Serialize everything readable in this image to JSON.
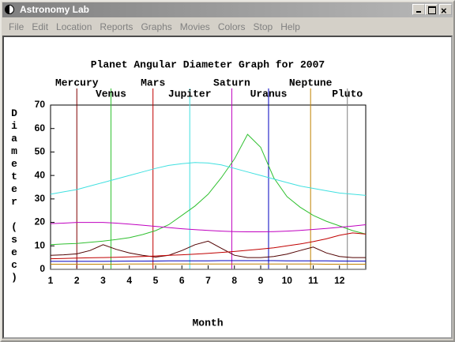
{
  "window": {
    "title": "Astronomy Lab",
    "menu": [
      "File",
      "Edit",
      "Location",
      "Reports",
      "Graphs",
      "Movies",
      "Colors",
      "Stop",
      "Help"
    ]
  },
  "chart_data": {
    "type": "line",
    "title": "Planet Angular Diameter Graph for 2007",
    "xlabel": "Month",
    "ylabel": "Diameter (sec)",
    "xlim": [
      1,
      13
    ],
    "xticks": [
      1,
      2,
      3,
      4,
      5,
      6,
      7,
      8,
      9,
      10,
      11,
      12
    ],
    "ylim": [
      0,
      70
    ],
    "yticks": [
      0,
      10,
      20,
      30,
      40,
      50,
      60,
      70
    ],
    "markers": [
      {
        "label": "Mercury",
        "x": 2.0,
        "color": "#800000"
      },
      {
        "label": "Venus",
        "x": 3.3,
        "color": "#30c030"
      },
      {
        "label": "Mars",
        "x": 4.9,
        "color": "#c00000"
      },
      {
        "label": "Jupiter",
        "x": 6.3,
        "color": "#40e0e0"
      },
      {
        "label": "Saturn",
        "x": 7.9,
        "color": "#c000c0"
      },
      {
        "label": "Uranus",
        "x": 9.3,
        "color": "#0000c0"
      },
      {
        "label": "Neptune",
        "x": 10.9,
        "color": "#c08000"
      },
      {
        "label": "Pluto",
        "x": 12.3,
        "color": "#808080"
      }
    ],
    "x": [
      1,
      1.5,
      2,
      2.5,
      3,
      3.5,
      4,
      4.5,
      5,
      5.5,
      6,
      6.5,
      7,
      7.5,
      8,
      8.5,
      9,
      9.5,
      10,
      10.5,
      11,
      11.5,
      12,
      12.5,
      13
    ],
    "series": [
      {
        "name": "Mercury",
        "color": "#500000",
        "values": [
          6,
          6.2,
          6.6,
          8,
          10.5,
          8.5,
          7,
          6,
          5.2,
          6,
          8,
          10.5,
          12,
          9,
          6,
          5,
          5,
          5.5,
          6.5,
          8,
          9.5,
          7,
          5.5,
          5,
          5
        ]
      },
      {
        "name": "Venus",
        "color": "#30c030",
        "values": [
          10.5,
          10.8,
          11,
          11.5,
          12,
          12.7,
          13.5,
          14.8,
          16.5,
          19,
          23,
          27,
          32,
          39,
          47,
          57.5,
          52,
          39,
          31,
          26.5,
          23,
          20.5,
          18.5,
          16.5,
          15
        ]
      },
      {
        "name": "Mars",
        "color": "#c00000",
        "values": [
          4.5,
          4.6,
          4.8,
          4.9,
          5,
          5.1,
          5.3,
          5.5,
          5.7,
          6,
          6.2,
          6.5,
          6.8,
          7.2,
          7.6,
          8.1,
          8.6,
          9.2,
          10,
          10.8,
          11.8,
          13,
          14.5,
          15.5,
          15
        ]
      },
      {
        "name": "Jupiter",
        "color": "#40e0e0",
        "values": [
          32,
          33,
          34,
          35.5,
          37,
          38.5,
          40,
          41.5,
          43,
          44.3,
          45,
          45.5,
          45.3,
          44.5,
          43,
          41.5,
          40,
          38.5,
          37,
          35.5,
          34.5,
          33.5,
          32.5,
          32,
          31.5
        ]
      },
      {
        "name": "Saturn",
        "color": "#c000c0",
        "values": [
          19.5,
          19.7,
          20,
          20,
          20,
          19.7,
          19.3,
          18.8,
          18.3,
          17.8,
          17.3,
          16.9,
          16.6,
          16.3,
          16.1,
          16,
          16,
          16.1,
          16.3,
          16.6,
          17,
          17.4,
          17.9,
          18.4,
          19
        ]
      },
      {
        "name": "Uranus",
        "color": "#0000c0",
        "values": [
          3.4,
          3.4,
          3.4,
          3.4,
          3.4,
          3.45,
          3.5,
          3.5,
          3.55,
          3.6,
          3.6,
          3.65,
          3.65,
          3.7,
          3.7,
          3.7,
          3.7,
          3.7,
          3.65,
          3.65,
          3.6,
          3.6,
          3.55,
          3.5,
          3.5
        ]
      },
      {
        "name": "Neptune",
        "color": "#c08000",
        "values": [
          2.2,
          2.2,
          2.2,
          2.2,
          2.2,
          2.2,
          2.25,
          2.25,
          2.3,
          2.3,
          2.3,
          2.3,
          2.3,
          2.3,
          2.3,
          2.3,
          2.3,
          2.3,
          2.25,
          2.25,
          2.25,
          2.2,
          2.2,
          2.2,
          2.2
        ]
      },
      {
        "name": "Pluto",
        "color": "#808080",
        "values": [
          0.1,
          0.1,
          0.1,
          0.1,
          0.1,
          0.1,
          0.1,
          0.1,
          0.1,
          0.1,
          0.1,
          0.1,
          0.1,
          0.1,
          0.1,
          0.1,
          0.1,
          0.1,
          0.1,
          0.1,
          0.1,
          0.1,
          0.1,
          0.1,
          0.1
        ]
      }
    ]
  }
}
